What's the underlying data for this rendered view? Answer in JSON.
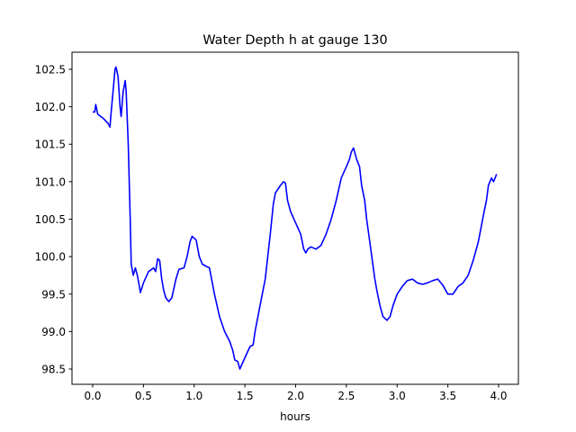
{
  "chart_data": {
    "type": "line",
    "title": "Water Depth h at gauge 130",
    "xlabel": "hours",
    "ylabel": "",
    "xlim": [
      -0.204,
      4.195
    ],
    "ylim": [
      98.296,
      102.728
    ],
    "xticks": [
      0.0,
      0.5,
      1.0,
      1.5,
      2.0,
      2.5,
      3.0,
      3.5,
      4.0
    ],
    "xtick_labels": [
      "0.0",
      "0.5",
      "1.0",
      "1.5",
      "2.0",
      "2.5",
      "3.0",
      "3.5",
      "4.0"
    ],
    "yticks": [
      98.5,
      99.0,
      99.5,
      100.0,
      100.5,
      101.0,
      101.5,
      102.0,
      102.5
    ],
    "ytick_labels": [
      "98.5",
      "99.0",
      "99.5",
      "100.0",
      "100.5",
      "101.0",
      "101.5",
      "102.0",
      "102.5"
    ],
    "grid": false,
    "series": [
      {
        "name": "h",
        "color": "#0000ff",
        "x": [
          0.0,
          0.02,
          0.03,
          0.05,
          0.1,
          0.15,
          0.17,
          0.18,
          0.2,
          0.22,
          0.23,
          0.25,
          0.27,
          0.28,
          0.3,
          0.32,
          0.33,
          0.35,
          0.37,
          0.38,
          0.4,
          0.42,
          0.44,
          0.46,
          0.47,
          0.5,
          0.55,
          0.6,
          0.62,
          0.64,
          0.66,
          0.68,
          0.7,
          0.72,
          0.75,
          0.78,
          0.82,
          0.85,
          0.9,
          0.93,
          0.96,
          0.98,
          1.02,
          1.05,
          1.08,
          1.12,
          1.15,
          1.2,
          1.25,
          1.3,
          1.35,
          1.38,
          1.4,
          1.43,
          1.45,
          1.5,
          1.55,
          1.58,
          1.6,
          1.65,
          1.7,
          1.75,
          1.78,
          1.8,
          1.85,
          1.88,
          1.9,
          1.92,
          1.95,
          2.0,
          2.05,
          2.08,
          2.1,
          2.12,
          2.15,
          2.2,
          2.25,
          2.3,
          2.35,
          2.4,
          2.45,
          2.5,
          2.53,
          2.55,
          2.57,
          2.6,
          2.63,
          2.65,
          2.68,
          2.7,
          2.72,
          2.75,
          2.78,
          2.8,
          2.83,
          2.86,
          2.9,
          2.93,
          2.96,
          3.0,
          3.05,
          3.1,
          3.15,
          3.2,
          3.25,
          3.3,
          3.35,
          3.4,
          3.45,
          3.5,
          3.55,
          3.6,
          3.65,
          3.7,
          3.75,
          3.8,
          3.85,
          3.88,
          3.9,
          3.93,
          3.95,
          3.98
        ],
        "y": [
          101.93,
          101.93,
          102.03,
          101.9,
          101.85,
          101.78,
          101.73,
          101.9,
          102.2,
          102.5,
          102.53,
          102.4,
          102.0,
          101.87,
          102.2,
          102.35,
          102.2,
          101.5,
          100.5,
          99.9,
          99.75,
          99.85,
          99.75,
          99.6,
          99.52,
          99.65,
          99.8,
          99.85,
          99.8,
          99.97,
          99.95,
          99.7,
          99.55,
          99.45,
          99.4,
          99.45,
          99.7,
          99.83,
          99.85,
          100.0,
          100.2,
          100.27,
          100.22,
          100.0,
          99.9,
          99.87,
          99.85,
          99.5,
          99.2,
          99.0,
          98.87,
          98.75,
          98.62,
          98.6,
          98.5,
          98.65,
          98.8,
          98.82,
          99.0,
          99.35,
          99.7,
          100.3,
          100.7,
          100.85,
          100.95,
          101.0,
          100.98,
          100.75,
          100.6,
          100.45,
          100.3,
          100.1,
          100.05,
          100.1,
          100.13,
          100.1,
          100.15,
          100.3,
          100.5,
          100.75,
          101.05,
          101.2,
          101.3,
          101.4,
          101.45,
          101.3,
          101.2,
          100.95,
          100.75,
          100.5,
          100.3,
          100.0,
          99.7,
          99.55,
          99.35,
          99.2,
          99.15,
          99.2,
          99.35,
          99.5,
          99.6,
          99.68,
          99.7,
          99.65,
          99.63,
          99.65,
          99.68,
          99.7,
          99.62,
          99.5,
          99.5,
          99.6,
          99.65,
          99.75,
          99.95,
          100.2,
          100.55,
          100.75,
          100.95,
          101.05,
          101.0,
          101.1
        ]
      }
    ]
  }
}
